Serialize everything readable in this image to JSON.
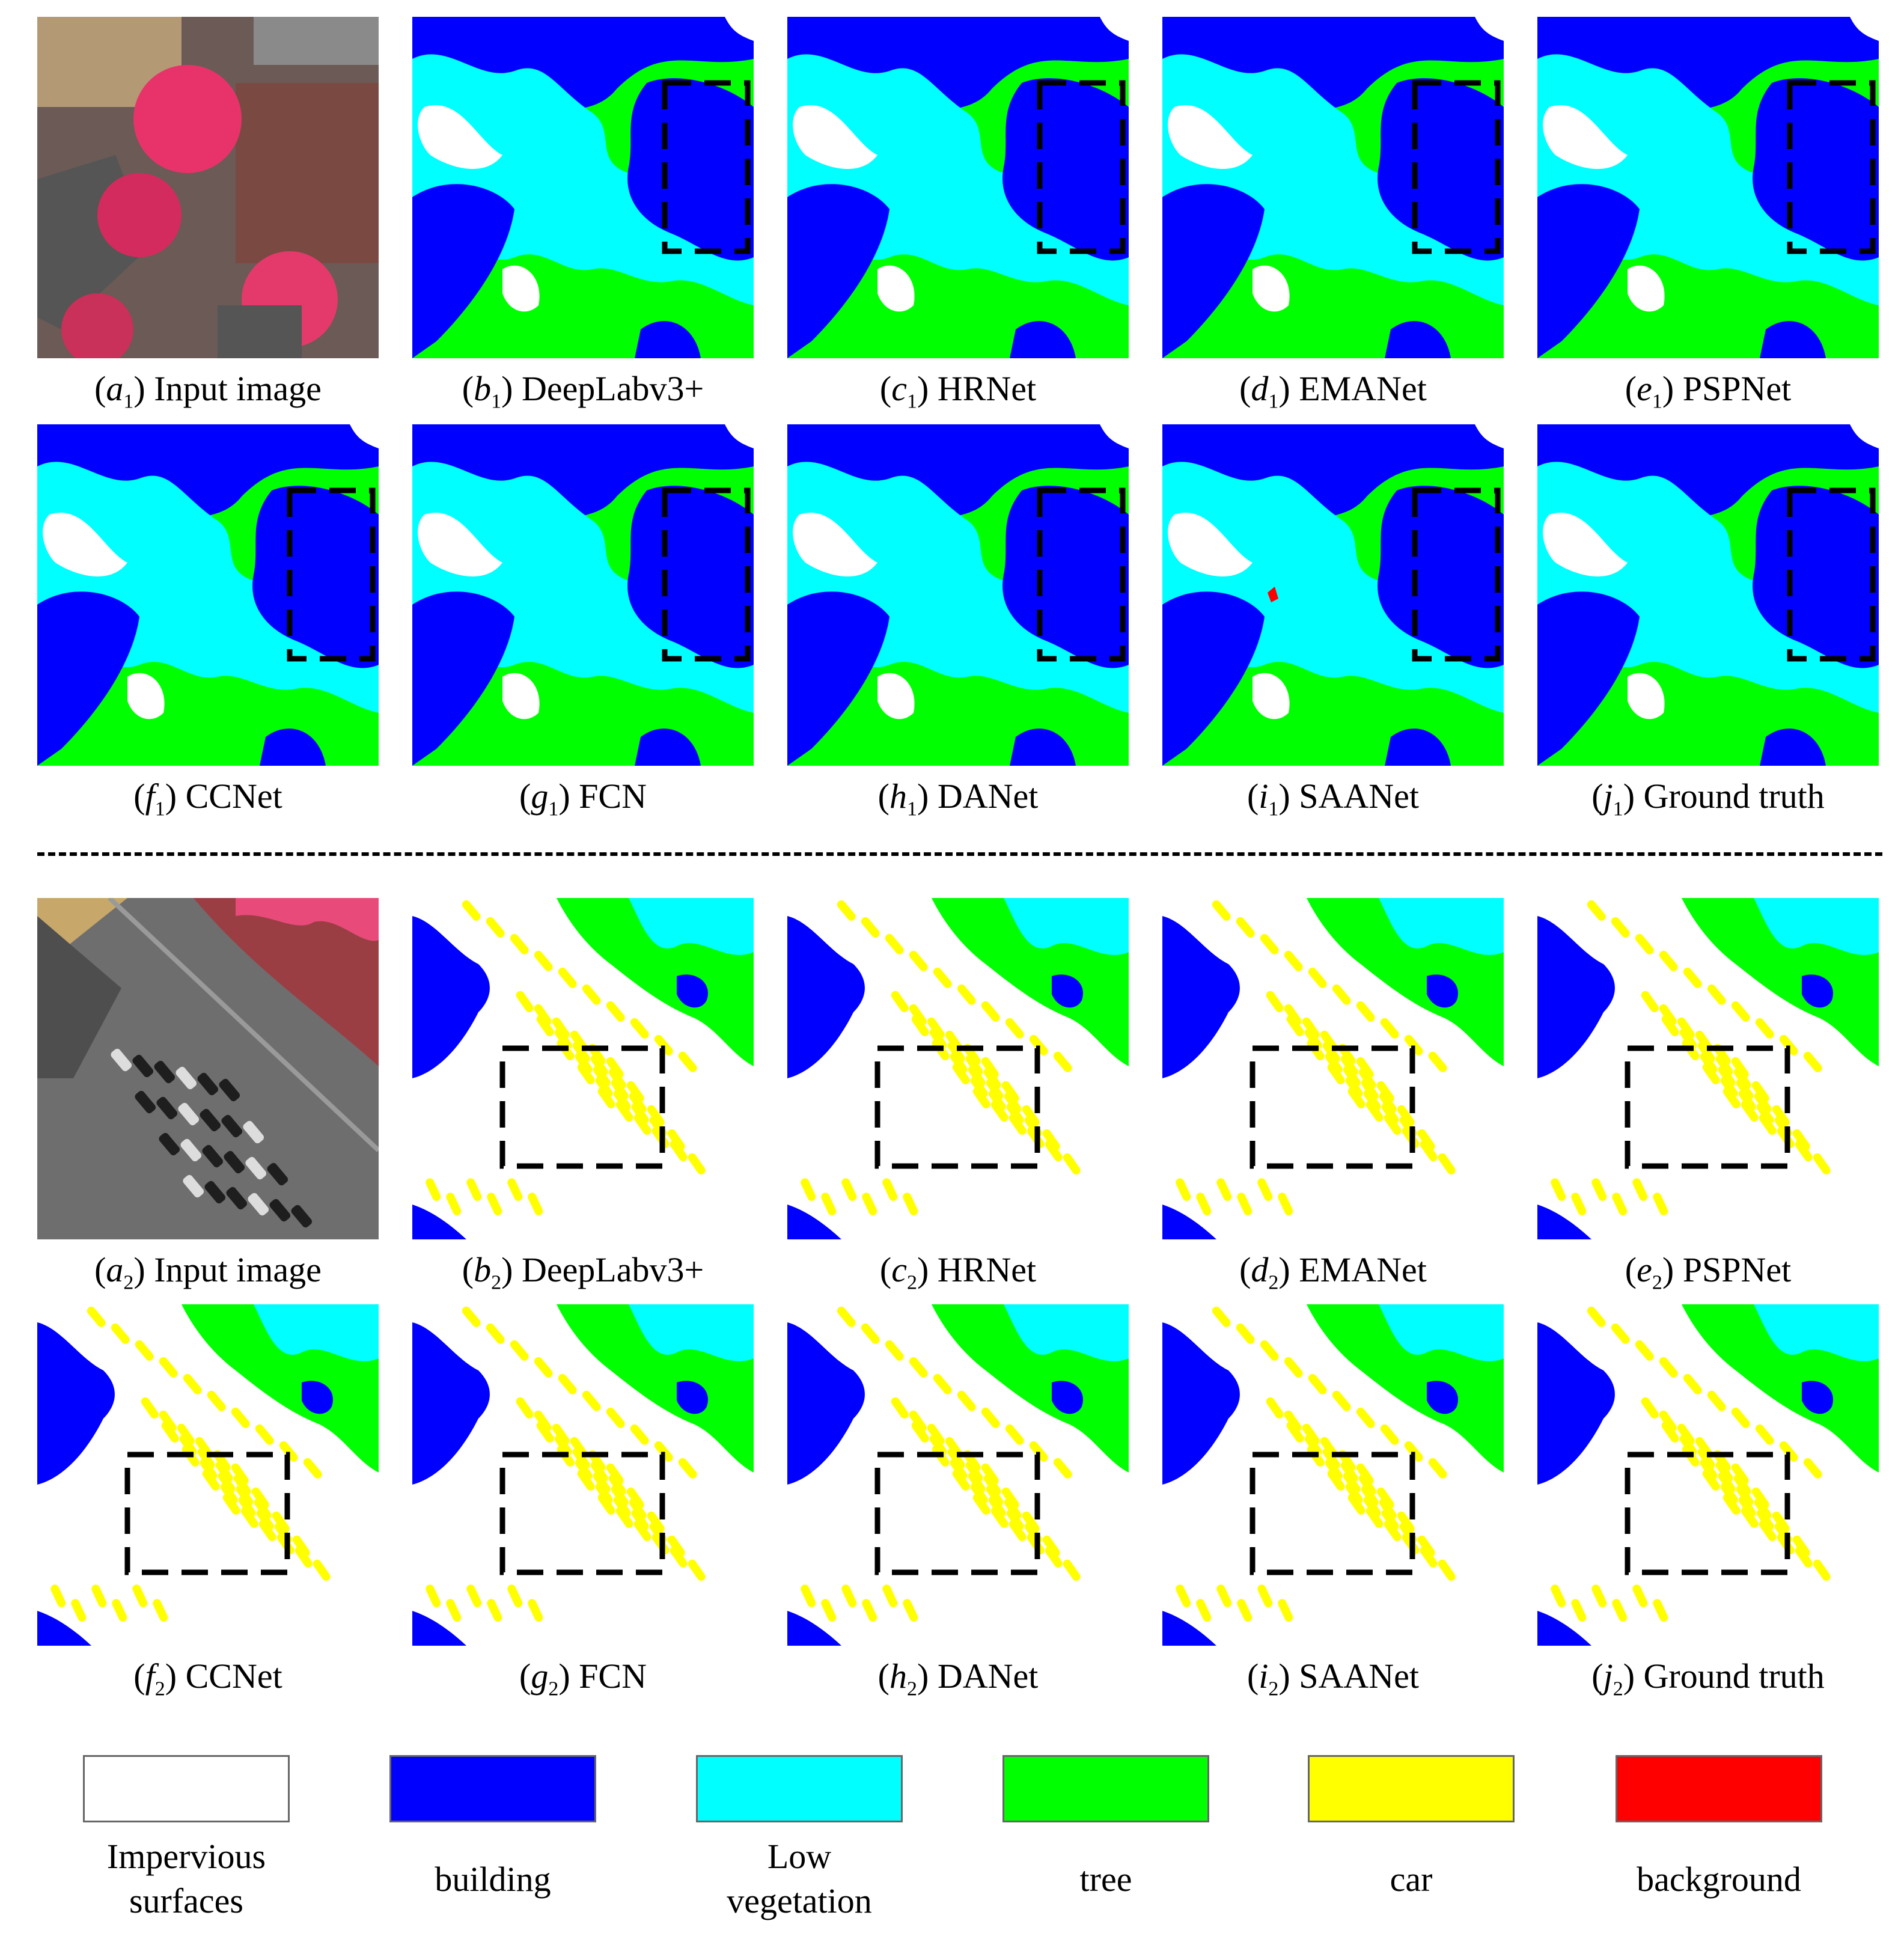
{
  "colors": {
    "impervious": "#ffffff",
    "building": "#0000ff",
    "low_vegetation": "#00ffff",
    "tree": "#00ff00",
    "car": "#ffff00",
    "background": "#ff0000"
  },
  "rows": [
    {
      "kind": "aerial1",
      "captions": [
        {
          "letter": "a",
          "sub": "1",
          "name": "Input image"
        },
        {
          "letter": "b",
          "sub": "1",
          "name": "DeepLabv3+"
        },
        {
          "letter": "c",
          "sub": "1",
          "name": "HRNet"
        },
        {
          "letter": "d",
          "sub": "1",
          "name": "EMANet"
        },
        {
          "letter": "e",
          "sub": "1",
          "name": "PSPNet"
        }
      ]
    },
    {
      "kind": "seg1",
      "captions": [
        {
          "letter": "f",
          "sub": "1",
          "name": "CCNet"
        },
        {
          "letter": "g",
          "sub": "1",
          "name": "FCN"
        },
        {
          "letter": "h",
          "sub": "1",
          "name": "DANet"
        },
        {
          "letter": "i",
          "sub": "1",
          "name": "SAANet"
        },
        {
          "letter": "j",
          "sub": "1",
          "name": "Ground truth"
        }
      ]
    },
    {
      "kind": "aerial2",
      "captions": [
        {
          "letter": "a",
          "sub": "2",
          "name": "Input image"
        },
        {
          "letter": "b",
          "sub": "2",
          "name": "DeepLabv3+"
        },
        {
          "letter": "c",
          "sub": "2",
          "name": "HRNet"
        },
        {
          "letter": "d",
          "sub": "2",
          "name": "EMANet"
        },
        {
          "letter": "e",
          "sub": "2",
          "name": "PSPNet"
        }
      ]
    },
    {
      "kind": "seg2",
      "captions": [
        {
          "letter": "f",
          "sub": "2",
          "name": "CCNet"
        },
        {
          "letter": "g",
          "sub": "2",
          "name": "FCN"
        },
        {
          "letter": "h",
          "sub": "2",
          "name": "DANet"
        },
        {
          "letter": "i",
          "sub": "2",
          "name": "SAANet"
        },
        {
          "letter": "j",
          "sub": "2",
          "name": "Ground truth"
        }
      ]
    }
  ],
  "legend": [
    {
      "label": "Impervious\nsurfaces",
      "color": "#ffffff"
    },
    {
      "label": "building",
      "color": "#0000ff"
    },
    {
      "label": "Low\nvegetation",
      "color": "#00ffff"
    },
    {
      "label": "tree",
      "color": "#00ff00"
    },
    {
      "label": "car",
      "color": "#ffff00"
    },
    {
      "label": "background",
      "color": "#ff0000"
    }
  ]
}
